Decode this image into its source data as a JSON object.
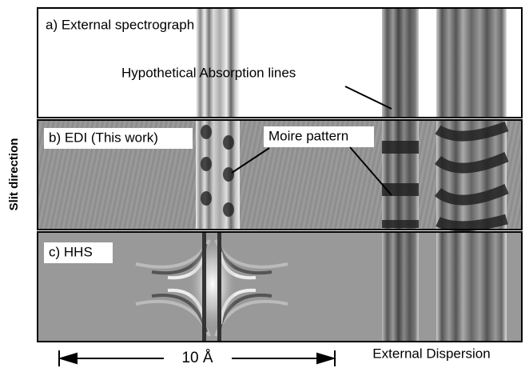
{
  "panels": [
    {
      "label": "a) External spectrograph"
    },
    {
      "label": "b) EDI (This work)"
    },
    {
      "label": "c) HHS"
    }
  ],
  "annotations": {
    "absorption": "Hypothetical Absorption lines",
    "moire": "Moire pattern"
  },
  "axes": {
    "y_label": "Slit direction",
    "scale": "10 Å",
    "x_label": "External Dispersion"
  }
}
